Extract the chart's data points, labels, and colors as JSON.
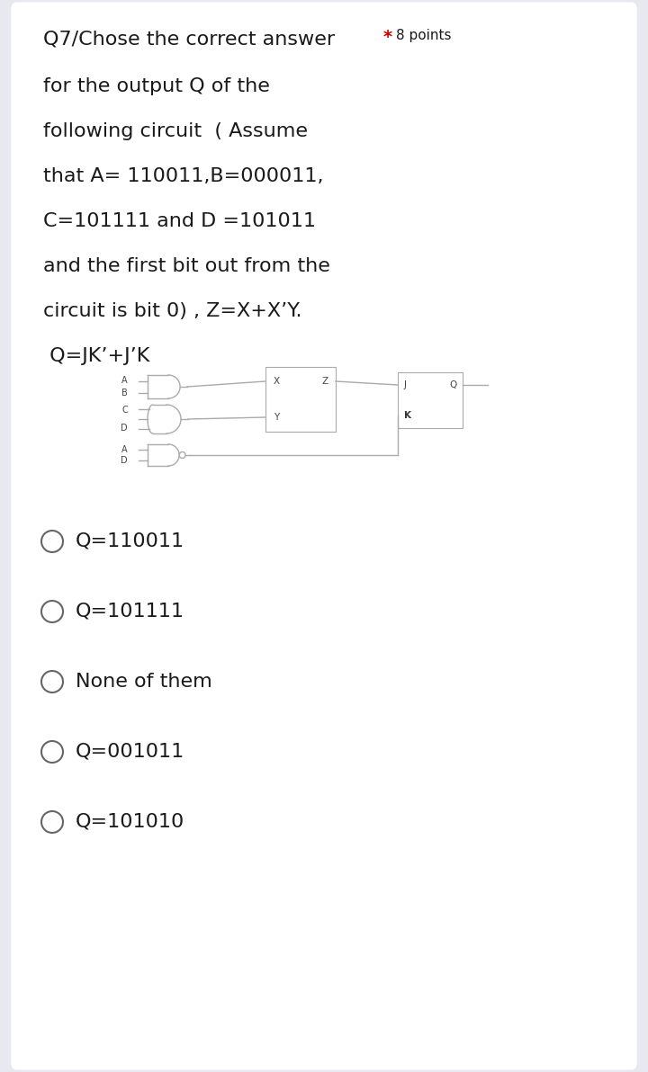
{
  "bg_color": "#e8e8f0",
  "card_color": "#ffffff",
  "title_text": "Q7/Chose the correct answer",
  "star_text": "*",
  "points_text": "8 points",
  "body_lines": [
    "for the output Q of the",
    "following circuit  ( Assume",
    "that A= 110011,B=000011,",
    "C=101111 and D =101011",
    "and the first bit out from the",
    "circuit is bit 0) , Z=X+X’Y.",
    " Q=JK’+J’K"
  ],
  "options": [
    "Q=110011",
    "Q=101111",
    "None of them",
    "Q=001011",
    "Q=101010"
  ],
  "title_fontsize": 16,
  "points_fontsize": 11,
  "body_fontsize": 16,
  "option_fontsize": 16,
  "title_color": "#1a1a1a",
  "points_color": "#cc0000",
  "body_color": "#1a1a1a",
  "option_color": "#1a1a1a",
  "circle_color": "#555555",
  "line_color": "#aaaaaa",
  "lw": 1.0
}
